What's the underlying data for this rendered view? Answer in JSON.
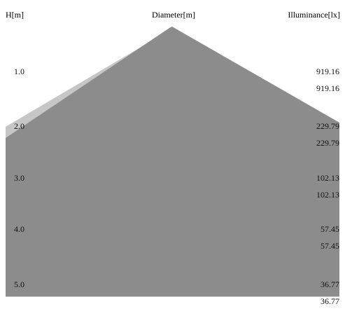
{
  "chart_data": {
    "type": "area",
    "title": "",
    "header": {
      "left": "H[m]",
      "center": "Diameter[m]",
      "right": "Illuminance[lx]"
    },
    "y_ticks": [
      "1.0",
      "2.0",
      "3.0",
      "4.0",
      "5.0"
    ],
    "heights_m": [
      1.0,
      2.0,
      3.0,
      4.0,
      5.0
    ],
    "illuminance_lx": [
      [
        "919.16",
        "919.16"
      ],
      [
        "229.79",
        "229.79"
      ],
      [
        "102.13",
        "102.13"
      ],
      [
        "57.45",
        "57.45"
      ],
      [
        "36.77",
        "36.77"
      ]
    ],
    "colors": {
      "cone_fill": "#8c8c8c",
      "cone_back": "#c6c6c6",
      "text": "#111111"
    }
  }
}
